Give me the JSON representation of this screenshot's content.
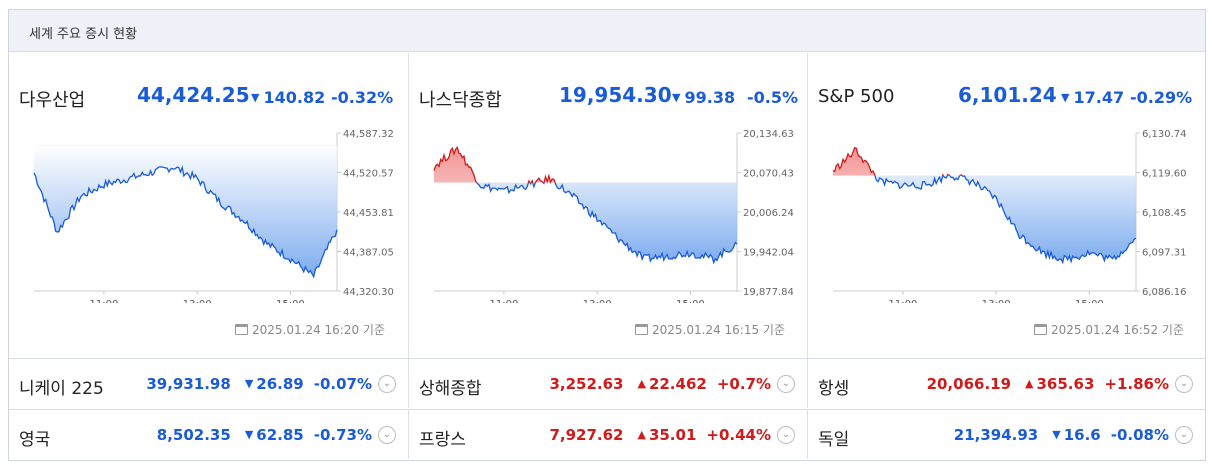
{
  "header": {
    "title": "세계 주요 증시 현황"
  },
  "colors": {
    "down": "#1a5bd8",
    "up": "#d11a1a"
  },
  "panels": [
    {
      "name": "다우산업",
      "value": "44,424.25",
      "change": "140.82",
      "pct": "-0.32%",
      "direction": "down",
      "timestamp": "2025.01.24 16:20 기준",
      "y_ticks": [
        "44,587.32",
        "44,520.57",
        "44,453.81",
        "44,387.05",
        "44,320.30"
      ],
      "x_ticks": [
        "11:00",
        "13:00",
        "15:00"
      ]
    },
    {
      "name": "나스닥종합",
      "value": "19,954.30",
      "change": "99.38",
      "pct": "-0.5%",
      "direction": "down",
      "timestamp": "2025.01.24 16:15 기준",
      "y_ticks": [
        "20,134.63",
        "20,070.43",
        "20,006.24",
        "19,942.04",
        "19,877.84"
      ],
      "x_ticks": [
        "11:00",
        "13:00",
        "15:00"
      ]
    },
    {
      "name": "S&P 500",
      "value": "6,101.24",
      "change": "17.47",
      "pct": "-0.29%",
      "direction": "down",
      "timestamp": "2025.01.24 16:52 기준",
      "y_ticks": [
        "6,130.74",
        "6,119.60",
        "6,108.45",
        "6,097.31",
        "6,086.16"
      ],
      "x_ticks": [
        "11:00",
        "13:00",
        "15:00"
      ]
    }
  ],
  "rows": [
    {
      "name": "니케이 225",
      "value": "39,931.98",
      "change": "26.89",
      "pct": "-0.07%",
      "direction": "down"
    },
    {
      "name": "상해종합",
      "value": "3,252.63",
      "change": "22.462",
      "pct": "+0.7%",
      "direction": "up"
    },
    {
      "name": "항셍",
      "value": "20,066.19",
      "change": "365.63",
      "pct": "+1.86%",
      "direction": "up"
    },
    {
      "name": "영국",
      "value": "8,502.35",
      "change": "62.85",
      "pct": "-0.73%",
      "direction": "down"
    },
    {
      "name": "프랑스",
      "value": "7,927.62",
      "change": "35.01",
      "pct": "+0.44%",
      "direction": "up"
    },
    {
      "name": "독일",
      "value": "21,394.93",
      "change": "16.6",
      "pct": "-0.08%",
      "direction": "down"
    }
  ],
  "chart_data": [
    {
      "type": "line",
      "x": [
        "09:30",
        "10:00",
        "10:30",
        "11:00",
        "11:30",
        "12:00",
        "12:30",
        "13:00",
        "13:30",
        "14:00",
        "14:30",
        "15:00",
        "15:30",
        "16:00"
      ],
      "values": [
        44520,
        44420,
        44480,
        44500,
        44510,
        44520,
        44530,
        44510,
        44470,
        44440,
        44400,
        44375,
        44345,
        44424
      ],
      "reference": 44566,
      "ylim": [
        44320.3,
        44587.32
      ]
    },
    {
      "type": "line",
      "x": [
        "09:30",
        "10:00",
        "10:30",
        "11:00",
        "11:30",
        "12:00",
        "12:30",
        "13:00",
        "13:30",
        "14:00",
        "14:30",
        "15:00",
        "15:30",
        "16:00"
      ],
      "values": [
        20080,
        20110,
        20050,
        20040,
        20050,
        20060,
        20030,
        19995,
        19960,
        19930,
        19935,
        19940,
        19930,
        19954
      ],
      "reference": 20054,
      "ylim": [
        19877.84,
        20134.63
      ]
    },
    {
      "type": "line",
      "x": [
        "09:30",
        "10:00",
        "10:30",
        "11:00",
        "11:30",
        "12:00",
        "12:30",
        "13:00",
        "13:30",
        "14:00",
        "14:30",
        "15:00",
        "15:30",
        "16:00"
      ],
      "values": [
        6120,
        6126,
        6117,
        6116,
        6116,
        6119,
        6117,
        6112,
        6102,
        6097,
        6095,
        6097,
        6095,
        6101
      ],
      "reference": 6118.7,
      "ylim": [
        6086.16,
        6130.74
      ]
    }
  ]
}
